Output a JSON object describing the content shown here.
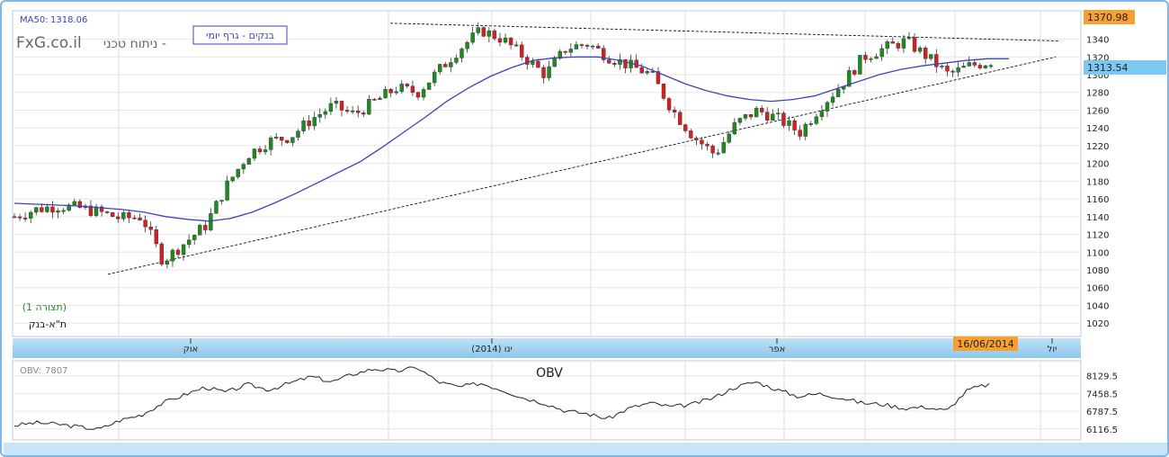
{
  "ma_label": "MA50:",
  "ma_value": "1318.06",
  "brand": "FxG.co.il",
  "brand_subtitle": "ניתוח טכני -",
  "chart_label": "בנקים - גרף יומי",
  "display_label": "(תצורה 1)",
  "symbol": "ת\"א-בנק",
  "high_marker": "1370.98",
  "last_price_marker": "1313.54",
  "date_marker": "16/06/2014",
  "obv_label": "OBV:",
  "obv_value": "7807",
  "obv_title": "OBV",
  "colors": {
    "up": "#1f8a1f",
    "down": "#d42020",
    "ma": "#3b45b8",
    "marker_orange": "#f5a030",
    "marker_blue": "#7cc8f0",
    "frame": "#7fb6e4"
  },
  "chart_data": [
    {
      "type": "candlestick",
      "title": "בנקים - גרף יומי",
      "y_ticks": [
        1020,
        1040,
        1060,
        1080,
        1100,
        1120,
        1140,
        1160,
        1180,
        1200,
        1220,
        1240,
        1260,
        1280,
        1300,
        1320,
        1340
      ],
      "ylim": [
        1005,
        1372
      ],
      "x_month_labels": [
        "אוק",
        "ינו (2014)",
        "אפר",
        "יול"
      ],
      "grid": true,
      "series": [
        {
          "name": "MA50",
          "values": [
            1155,
            1154,
            1153,
            1152,
            1150,
            1148,
            1145,
            1140,
            1137,
            1135,
            1138,
            1145,
            1155,
            1166,
            1178,
            1190,
            1202,
            1218,
            1235,
            1252,
            1270,
            1285,
            1298,
            1308,
            1316,
            1319,
            1320,
            1320,
            1316,
            1310,
            1300,
            1290,
            1282,
            1276,
            1272,
            1270,
            1272,
            1276,
            1284,
            1292,
            1300,
            1306,
            1310,
            1313,
            1316,
            1318,
            1318
          ]
        },
        {
          "name": "close",
          "values": [
            1140,
            1148,
            1152,
            1150,
            1145,
            1138,
            1140,
            1090,
            1110,
            1130,
            1175,
            1210,
            1225,
            1230,
            1250,
            1265,
            1255,
            1270,
            1285,
            1280,
            1305,
            1330,
            1350,
            1340,
            1320,
            1300,
            1330,
            1335,
            1320,
            1310,
            1300,
            1260,
            1230,
            1210,
            1245,
            1260,
            1250,
            1235,
            1265,
            1290,
            1320,
            1330,
            1338,
            1320,
            1300,
            1310,
            1315
          ]
        }
      ],
      "trendlines": [
        {
          "name": "support",
          "from": [
            "start",
            1075
          ],
          "to": [
            "end",
            1320
          ]
        },
        {
          "name": "resistance",
          "from": [
            "top",
            1358
          ],
          "to": [
            "end",
            1338
          ]
        }
      ]
    },
    {
      "type": "line",
      "title": "OBV",
      "y_ticks": [
        6116.5,
        6787.5,
        7458.5,
        8129.5
      ],
      "ylim": [
        5700,
        8700
      ],
      "values": [
        6250,
        6350,
        6300,
        6200,
        6100,
        6450,
        6650,
        7100,
        7400,
        7700,
        7500,
        7800,
        7600,
        7850,
        8100,
        7900,
        8200,
        8400,
        8300,
        8450,
        7900,
        7700,
        7850,
        7600,
        7300,
        7100,
        6800,
        6700,
        6500,
        6900,
        7100,
        6950,
        7050,
        7300,
        7700,
        7900,
        7600,
        7350,
        7450,
        7300,
        7100,
        7050,
        6900,
        6950,
        6800,
        7600,
        7807
      ]
    }
  ]
}
